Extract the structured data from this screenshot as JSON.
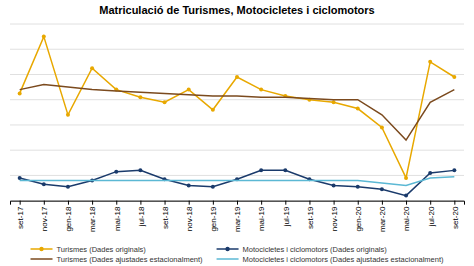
{
  "chart_data": {
    "type": "line",
    "title": "Matriculació de Turismes, Motocicletes i ciclomotors",
    "categories": [
      "set-17",
      "nov-17",
      "gen-18",
      "mar-18",
      "mai-18",
      "jul-18",
      "set-18",
      "nov-18",
      "gen-19",
      "mar-19",
      "mai-19",
      "jul-19",
      "set-19",
      "nov-19",
      "gen-20",
      "mar-20",
      "mai-20",
      "jul-20",
      "set-20"
    ],
    "series": [
      {
        "name": "Turismes (Dades originals)",
        "color": "#E8A800",
        "marker": "circle",
        "values": [
          85,
          130,
          68,
          105,
          88,
          82,
          78,
          88,
          72,
          98,
          88,
          83,
          80,
          78,
          73,
          58,
          18,
          110,
          98
        ]
      },
      {
        "name": "Turismes (Dades ajustades estacionalment)",
        "color": "#7B4A1E",
        "values": [
          88,
          92,
          90,
          88,
          87,
          86,
          85,
          84,
          83,
          83,
          82,
          82,
          81,
          80,
          80,
          68,
          48,
          78,
          88
        ]
      },
      {
        "name": "Motocicletes i ciclomotors (Dades originals)",
        "color": "#1A3A6B",
        "marker": "circle",
        "values": [
          18,
          13,
          11,
          16,
          23,
          24,
          17,
          12,
          11,
          17,
          24,
          24,
          17,
          12,
          11,
          9,
          4,
          22,
          24
        ]
      },
      {
        "name": "Motocicletes i ciclomotors (Dades ajustades estacionalment)",
        "color": "#5BB8D4",
        "values": [
          16,
          16,
          16,
          16,
          16,
          16,
          16,
          16,
          16,
          16,
          16,
          16,
          16,
          16,
          16,
          14,
          12,
          18,
          19
        ]
      }
    ],
    "ylim": [
      0,
      140
    ],
    "yticks": [
      0,
      20,
      40,
      60,
      80,
      100,
      120,
      140
    ],
    "grid": true,
    "tick_labels": "x",
    "legend": "bottom"
  }
}
